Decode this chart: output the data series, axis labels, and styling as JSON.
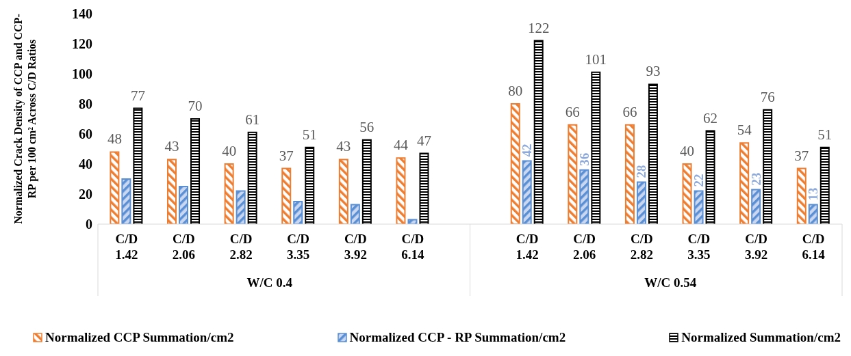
{
  "chart_data": {
    "type": "bar",
    "ylabel": "Normalized Crack Density of CCP and CCP-RP per 100 cm² Across C/D Ratios",
    "categories": [
      "C/D 1.42",
      "C/D 2.06",
      "C/D 2.82",
      "C/D 3.35",
      "C/D 3.92",
      "C/D 6.14",
      "C/D 1.42",
      "C/D 2.06",
      "C/D 2.82",
      "C/D 3.35",
      "C/D 3.92",
      "C/D 6.14"
    ],
    "series": [
      {
        "name": "Normalized CCP Summation/cm2",
        "color": "#ed7d31",
        "values": [
          48,
          43,
          40,
          37,
          43,
          44,
          80,
          66,
          66,
          40,
          54,
          37
        ],
        "value_labels": [
          "48",
          "43",
          "40",
          "37",
          "43",
          "44",
          "80",
          "66",
          "66",
          "40",
          "54",
          "37"
        ]
      },
      {
        "name": "Normalized CCP - RP Summation/cm2",
        "color": "#5b8fd4",
        "values": [
          30,
          25,
          22,
          15,
          13,
          3,
          42,
          36,
          28,
          22,
          23,
          13
        ],
        "value_labels": [
          null,
          null,
          null,
          null,
          null,
          null,
          "42",
          "36",
          "28",
          "22",
          "23",
          "13"
        ]
      },
      {
        "name": "Normalized Summation/cm2",
        "color": "#000000",
        "values": [
          77,
          70,
          61,
          51,
          56,
          47,
          122,
          101,
          93,
          62,
          76,
          51
        ],
        "value_labels": [
          "77",
          "70",
          "61",
          "51",
          "56",
          "47",
          "122",
          "101",
          "93",
          "62",
          "76",
          "51"
        ]
      }
    ],
    "ylim": [
      0,
      140
    ],
    "yticks": [
      0,
      20,
      40,
      60,
      80,
      100,
      120,
      140
    ],
    "annotations": [
      "W/C 0.4",
      "W/C 0.54"
    ],
    "grid": false,
    "legend": "bottom"
  }
}
